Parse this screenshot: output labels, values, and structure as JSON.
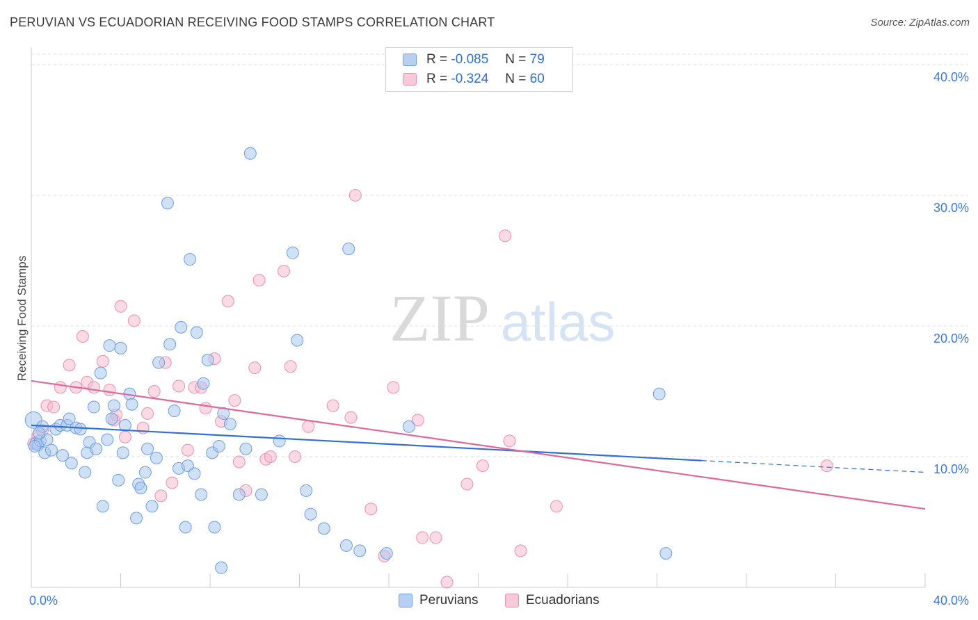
{
  "title": "PERUVIAN VS ECUADORIAN RECEIVING FOOD STAMPS CORRELATION CHART",
  "source": "Source: ZipAtlas.com",
  "watermark": {
    "zip": "ZIP",
    "atlas": "atlas"
  },
  "legend": {
    "rows": [
      {
        "r_label": "R =",
        "r_value": "-0.085",
        "n_label": "N =",
        "n_value": "79"
      },
      {
        "r_label": "R =",
        "r_value": "-0.324",
        "n_label": "N =",
        "n_value": "60"
      }
    ]
  },
  "bottom_legend": {
    "peruvians": "Peruvians",
    "ecuadorians": "Ecuadorians"
  },
  "colors": {
    "blue_fill": "#a9c8ef",
    "blue_stroke": "#6d9ee0",
    "blue_line": "#2f6fd6",
    "pink_fill": "#f5bcd0",
    "pink_stroke": "#eb8fae",
    "pink_line": "#e0679a",
    "tick_text": "#3b78d8",
    "grid": "#dddddd"
  },
  "chart_data": {
    "type": "scatter",
    "title": "PERUVIAN VS ECUADORIAN RECEIVING FOOD STAMPS CORRELATION CHART",
    "xlabel": "",
    "ylabel": "Receiving Food Stamps",
    "xlim": [
      0,
      40
    ],
    "ylim": [
      0,
      40
    ],
    "x_tick_labels": [
      "0.0%",
      "40.0%"
    ],
    "y_tick_labels": [
      "10.0%",
      "20.0%",
      "30.0%",
      "40.0%"
    ],
    "y_ticks": [
      10,
      20,
      30,
      40
    ],
    "grid": "horizontal dashed",
    "legend_position": "top-center",
    "series": [
      {
        "name": "Peruvians",
        "color": "#6d9ee0",
        "R": -0.085,
        "N": 79,
        "trend": {
          "x0": 0,
          "y0": 12.4,
          "x1": 30,
          "y1": 9.7,
          "dashed_to_x": 40,
          "dashed_to_y": 8.8
        },
        "points": [
          [
            0.1,
            12.8
          ],
          [
            0.2,
            11.0
          ],
          [
            0.3,
            10.9
          ],
          [
            0.4,
            11.2
          ],
          [
            0.5,
            12.3
          ],
          [
            0.6,
            10.3
          ],
          [
            0.7,
            11.3
          ],
          [
            0.9,
            10.5
          ],
          [
            1.1,
            12.1
          ],
          [
            1.3,
            12.4
          ],
          [
            1.4,
            10.1
          ],
          [
            1.6,
            12.4
          ],
          [
            1.7,
            12.9
          ],
          [
            1.8,
            9.5
          ],
          [
            2.0,
            12.2
          ],
          [
            2.2,
            12.1
          ],
          [
            2.4,
            8.8
          ],
          [
            2.5,
            10.3
          ],
          [
            2.6,
            11.1
          ],
          [
            2.8,
            13.8
          ],
          [
            2.9,
            10.6
          ],
          [
            3.1,
            16.4
          ],
          [
            3.2,
            6.2
          ],
          [
            3.4,
            11.3
          ],
          [
            3.5,
            18.5
          ],
          [
            3.6,
            12.9
          ],
          [
            3.7,
            13.9
          ],
          [
            3.9,
            8.2
          ],
          [
            4.0,
            18.3
          ],
          [
            4.1,
            10.3
          ],
          [
            4.2,
            12.4
          ],
          [
            4.4,
            14.8
          ],
          [
            4.5,
            14.0
          ],
          [
            4.7,
            5.3
          ],
          [
            4.8,
            7.9
          ],
          [
            4.9,
            7.6
          ],
          [
            5.1,
            8.8
          ],
          [
            5.2,
            10.6
          ],
          [
            5.4,
            6.2
          ],
          [
            5.6,
            9.9
          ],
          [
            5.7,
            17.2
          ],
          [
            6.1,
            29.4
          ],
          [
            6.2,
            18.6
          ],
          [
            6.4,
            13.5
          ],
          [
            6.6,
            9.1
          ],
          [
            6.7,
            19.9
          ],
          [
            6.9,
            4.6
          ],
          [
            7.0,
            9.3
          ],
          [
            7.1,
            25.1
          ],
          [
            7.3,
            8.7
          ],
          [
            7.4,
            19.5
          ],
          [
            7.6,
            7.1
          ],
          [
            7.7,
            15.6
          ],
          [
            7.9,
            17.4
          ],
          [
            8.1,
            10.3
          ],
          [
            8.2,
            4.6
          ],
          [
            8.4,
            10.8
          ],
          [
            8.5,
            1.5
          ],
          [
            8.6,
            13.3
          ],
          [
            8.9,
            12.5
          ],
          [
            9.3,
            7.1
          ],
          [
            9.6,
            10.6
          ],
          [
            9.8,
            33.2
          ],
          [
            10.3,
            7.1
          ],
          [
            11.1,
            11.2
          ],
          [
            11.7,
            25.6
          ],
          [
            11.9,
            18.9
          ],
          [
            12.3,
            7.4
          ],
          [
            12.5,
            5.6
          ],
          [
            13.1,
            4.5
          ],
          [
            14.1,
            3.2
          ],
          [
            14.2,
            25.9
          ],
          [
            14.7,
            2.8
          ],
          [
            15.9,
            2.6
          ],
          [
            16.9,
            12.3
          ],
          [
            28.1,
            14.8
          ],
          [
            28.4,
            2.6
          ],
          [
            0.15,
            10.8
          ],
          [
            0.35,
            11.8
          ]
        ]
      },
      {
        "name": "Ecuadorians",
        "color": "#eb8fae",
        "R": -0.324,
        "N": 60,
        "trend": {
          "x0": 0,
          "y0": 15.8,
          "x1": 40,
          "y1": 6.0
        },
        "points": [
          [
            0.1,
            11.0
          ],
          [
            0.3,
            11.6
          ],
          [
            0.5,
            12.0
          ],
          [
            0.7,
            13.9
          ],
          [
            1.0,
            13.8
          ],
          [
            1.3,
            15.3
          ],
          [
            1.7,
            17.0
          ],
          [
            2.0,
            15.3
          ],
          [
            2.3,
            19.2
          ],
          [
            2.5,
            15.7
          ],
          [
            2.8,
            15.3
          ],
          [
            3.2,
            17.3
          ],
          [
            3.5,
            15.1
          ],
          [
            3.7,
            12.8
          ],
          [
            3.8,
            13.2
          ],
          [
            4.0,
            21.5
          ],
          [
            4.2,
            11.5
          ],
          [
            4.6,
            20.4
          ],
          [
            5.0,
            12.2
          ],
          [
            5.2,
            13.3
          ],
          [
            5.5,
            15.0
          ],
          [
            5.8,
            7.0
          ],
          [
            6.0,
            17.2
          ],
          [
            6.3,
            8.0
          ],
          [
            6.6,
            15.4
          ],
          [
            7.0,
            10.5
          ],
          [
            7.3,
            15.3
          ],
          [
            7.6,
            15.3
          ],
          [
            7.8,
            13.7
          ],
          [
            8.2,
            17.5
          ],
          [
            8.5,
            12.7
          ],
          [
            8.8,
            21.9
          ],
          [
            9.1,
            14.3
          ],
          [
            9.3,
            9.6
          ],
          [
            9.6,
            7.4
          ],
          [
            10.0,
            16.8
          ],
          [
            10.2,
            23.5
          ],
          [
            10.5,
            9.8
          ],
          [
            10.7,
            10.0
          ],
          [
            11.3,
            24.2
          ],
          [
            11.6,
            16.9
          ],
          [
            11.8,
            10.0
          ],
          [
            12.4,
            12.3
          ],
          [
            13.5,
            13.9
          ],
          [
            14.3,
            13.0
          ],
          [
            14.5,
            30.0
          ],
          [
            15.2,
            6.0
          ],
          [
            15.8,
            2.4
          ],
          [
            16.2,
            15.3
          ],
          [
            17.3,
            12.8
          ],
          [
            17.5,
            3.8
          ],
          [
            18.1,
            3.8
          ],
          [
            18.6,
            0.4
          ],
          [
            19.5,
            7.9
          ],
          [
            20.2,
            9.3
          ],
          [
            21.2,
            26.9
          ],
          [
            21.4,
            11.2
          ],
          [
            21.9,
            2.8
          ],
          [
            23.5,
            6.2
          ],
          [
            35.6,
            9.3
          ]
        ]
      }
    ]
  }
}
